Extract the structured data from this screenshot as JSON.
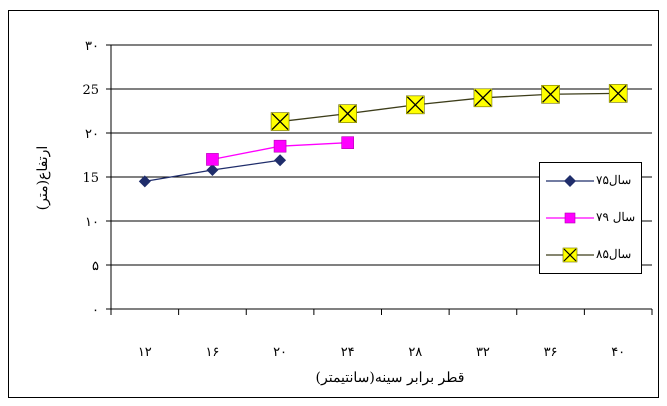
{
  "chart_data": {
    "type": "line",
    "title": "",
    "xlabel": "قطر برابر سینه(سانتیمتر)",
    "ylabel": "ارتفاع(متر)",
    "x_ticks": [
      12,
      16,
      20,
      24,
      28,
      32,
      36,
      40
    ],
    "x_tick_labels": [
      "۱۲",
      "۱۶",
      "۲۰",
      "۲۴",
      "۲۸",
      "۳۲",
      "۳۶",
      "۴۰"
    ],
    "y_ticks": [
      0,
      5,
      10,
      15,
      20,
      25,
      30
    ],
    "y_tick_labels": [
      "۰",
      "۵",
      "۱۰",
      "15",
      "۲۰",
      "25",
      "۳۰"
    ],
    "xlim": [
      10,
      42
    ],
    "ylim": [
      0,
      30
    ],
    "grid": "horizontal",
    "legend_position": "right",
    "series": [
      {
        "name": "سال۷۵",
        "marker": "diamond",
        "color": "#1f2d6b",
        "marker_fill": "#1f2d6b",
        "x": [
          12,
          16,
          20
        ],
        "y": [
          14.5,
          15.8,
          16.9
        ]
      },
      {
        "name": "سال ۷۹",
        "marker": "square",
        "color": "#ff00ff",
        "marker_fill": "#ff00ff",
        "x": [
          16,
          20,
          24
        ],
        "y": [
          17,
          18.5,
          18.9
        ]
      },
      {
        "name": "سال۸۵",
        "marker": "x-square",
        "color": "#3d3d1a",
        "marker_fill": "#ffff00",
        "x": [
          20,
          24,
          28,
          32,
          36,
          40
        ],
        "y": [
          21.3,
          22.2,
          23.2,
          24,
          24.4,
          24.5
        ]
      }
    ]
  }
}
